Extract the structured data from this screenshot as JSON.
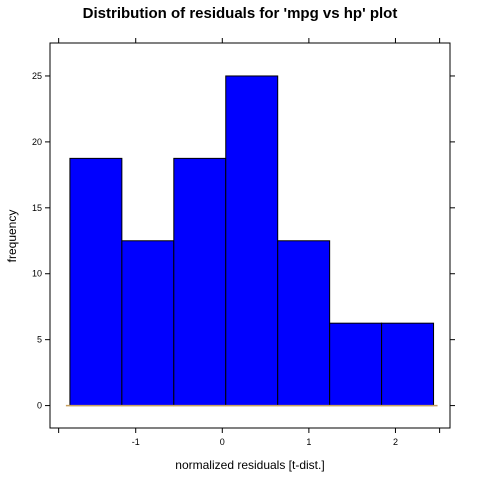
{
  "chart_data": {
    "type": "bar",
    "title": "Distribution of residuals for 'mpg vs hp' plot",
    "xlabel": "normalized residuals [t-dist.]",
    "ylabel": "frequency",
    "xlim": [
      -1.99,
      2.63
    ],
    "ylim": [
      -1.7,
      27.5
    ],
    "x_ticks": [
      -1,
      0,
      1,
      2
    ],
    "x_tick_labels": [
      "-1",
      "0",
      "1",
      "2"
    ],
    "y_ticks": [
      0,
      5,
      10,
      15,
      20,
      25
    ],
    "y_tick_labels": [
      "0",
      "5",
      "10",
      "15",
      "20",
      "25"
    ],
    "bins": [
      {
        "x0": -1.76,
        "x1": -1.16,
        "value": 18.75
      },
      {
        "x0": -1.16,
        "x1": -0.56,
        "value": 12.5
      },
      {
        "x0": -0.56,
        "x1": 0.04,
        "value": 18.75
      },
      {
        "x0": 0.04,
        "x1": 0.64,
        "value": 25
      },
      {
        "x0": 0.64,
        "x1": 1.24,
        "value": 12.5
      },
      {
        "x0": 1.24,
        "x1": 1.84,
        "value": 6.25
      },
      {
        "x0": 1.84,
        "x1": 2.44,
        "value": 6.25
      }
    ],
    "baseline": [
      -1.76,
      2.44
    ],
    "colors": {
      "bar_fill": "#0000ff",
      "bar_stroke": "#000000",
      "baseline": "#c8a060",
      "frame": "#000000"
    }
  }
}
